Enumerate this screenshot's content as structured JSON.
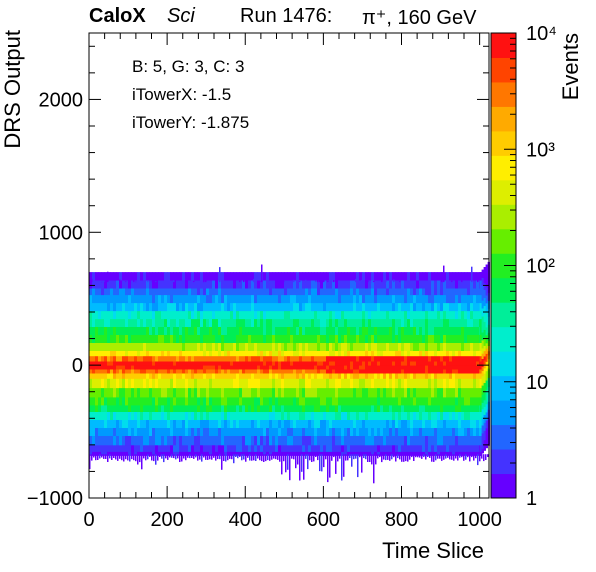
{
  "header": {
    "experiment": "CaloX",
    "detector": "Sci",
    "run": "Run 1476:",
    "beam": "π⁺, 160 GeV"
  },
  "info_box": {
    "lines": [
      "B: 5, G: 3, C: 3",
      "iTowerX: -1.5",
      "iTowerY: -1.875"
    ]
  },
  "colors": {
    "palette": [
      "#6600ff",
      "#4433ff",
      "#2266ff",
      "#0099ff",
      "#00bbff",
      "#00ddee",
      "#00eecc",
      "#00ee99",
      "#00ee55",
      "#22ee22",
      "#66ee00",
      "#aaee00",
      "#ddee00",
      "#ffee00",
      "#ffcc00",
      "#ffaa00",
      "#ff7700",
      "#ff4400",
      "#ff1111"
    ]
  },
  "chart_data": {
    "type": "heatmap",
    "xlabel": "Time Slice",
    "ylabel": "DRS Output",
    "zlabel": "Events",
    "xlim": [
      0,
      1024
    ],
    "ylim": [
      -1000,
      2500
    ],
    "zlim": [
      1,
      10000
    ],
    "z_scale": "log",
    "x_ticks": [
      "0",
      "200",
      "400",
      "600",
      "800",
      "1000"
    ],
    "y_ticks": [
      "−1000",
      "0",
      "1000",
      "2000"
    ],
    "z_ticks": [
      "1",
      "10",
      "10²",
      "10³",
      "10⁴"
    ],
    "band_boundaries": [
      -680,
      -650,
      -600,
      -530,
      -470,
      -410,
      -350,
      -300,
      -240,
      -170,
      -100,
      -60,
      -30,
      0,
      30,
      70,
      110,
      170,
      230,
      290,
      350,
      410,
      470,
      530,
      580,
      640,
      700
    ],
    "band_levels": [
      0,
      1,
      2,
      3,
      4,
      6,
      8,
      9,
      10,
      12,
      14,
      16,
      18,
      18,
      16,
      13,
      11,
      9,
      8,
      7,
      6,
      4,
      3,
      2,
      1,
      0
    ],
    "hot_region": {
      "x": [
        600,
        1010
      ],
      "y": [
        -60,
        80
      ]
    },
    "edge_region_x": [
      1000,
      1024
    ]
  }
}
